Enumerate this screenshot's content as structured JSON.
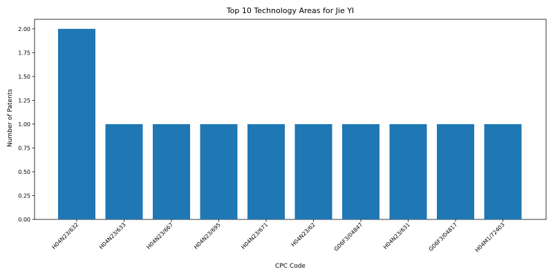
{
  "chart_data": {
    "type": "bar",
    "title": "Top 10 Technology Areas for Jie YI",
    "xlabel": "CPC Code",
    "ylabel": "Number of Patents",
    "categories": [
      "H04N23/632",
      "H04N23/633",
      "H04N23/667",
      "H04N23/695",
      "H04N23/671",
      "H04N23/62",
      "G06F3/04847",
      "H04N23/631",
      "G06F3/04817",
      "H04M1/72403"
    ],
    "values": [
      2,
      1,
      1,
      1,
      1,
      1,
      1,
      1,
      1,
      1
    ],
    "ylim": [
      0,
      2.1
    ],
    "yticks": [
      "0.00",
      "0.25",
      "0.50",
      "0.75",
      "1.00",
      "1.25",
      "1.50",
      "1.75",
      "2.00"
    ],
    "bar_color": "#1f77b4",
    "grid": false
  }
}
